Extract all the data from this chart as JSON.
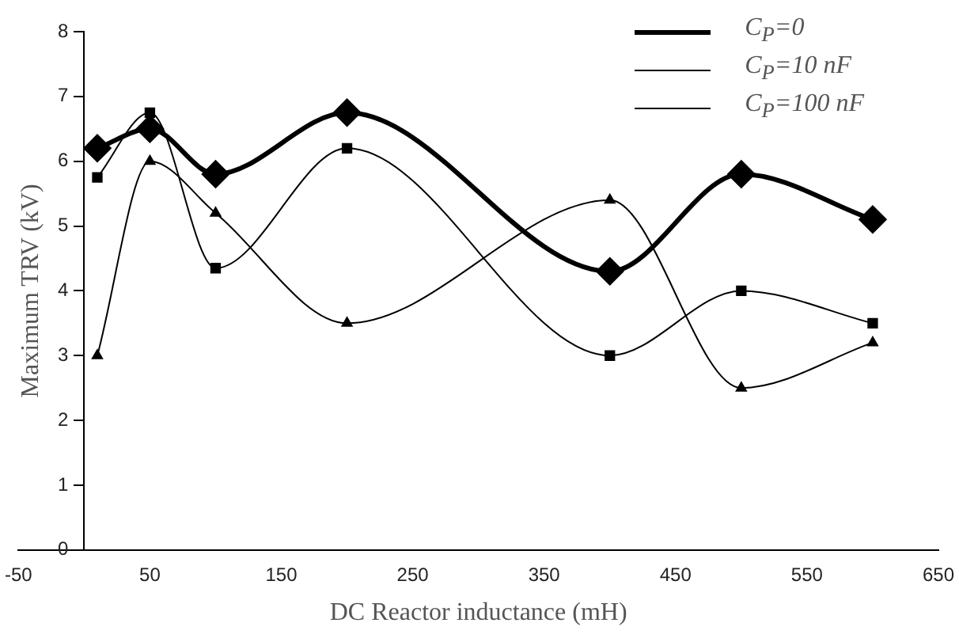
{
  "chart_data": {
    "type": "line",
    "xlabel": "DC Reactor inductance (mH)",
    "ylabel": "Maximum TRV (kV)",
    "xlim": [
      -50,
      650
    ],
    "xticks": [
      -50,
      50,
      150,
      250,
      350,
      450,
      550,
      650
    ],
    "ylim": [
      0,
      8
    ],
    "yticks": [
      0,
      1,
      2,
      3,
      4,
      5,
      6,
      7,
      8
    ],
    "x": [
      10,
      50,
      100,
      200,
      400,
      500,
      600
    ],
    "grid": false,
    "legend": "top right",
    "series": [
      {
        "name": "C$_{P}$=0",
        "color": "#000000",
        "marker": "diamond",
        "values": [
          6.2,
          6.5,
          5.8,
          6.75,
          4.3,
          5.8,
          5.1
        ]
      },
      {
        "name": "C$_{P}$=10 nF",
        "color": "#000000",
        "marker": "square",
        "values": [
          5.75,
          6.75,
          4.35,
          6.2,
          3.0,
          4.0,
          3.5
        ]
      },
      {
        "name": "C$_{P}$=100 nF",
        "color": "#000000",
        "marker": "triangle",
        "values": [
          3.0,
          6.0,
          5.2,
          3.5,
          5.4,
          2.5,
          3.2
        ]
      }
    ]
  }
}
